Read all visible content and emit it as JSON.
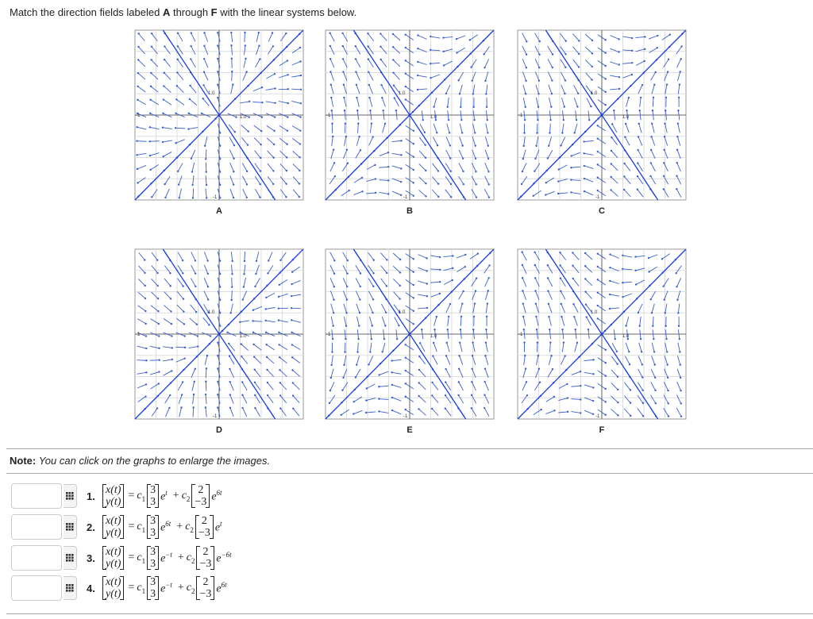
{
  "header": {
    "prefix": "Match the direction fields labeled ",
    "a": "A",
    "middle": " through ",
    "f": "F",
    "suffix": " with the linear systems below."
  },
  "graphs": [
    {
      "label": "A"
    },
    {
      "label": "B"
    },
    {
      "label": "C"
    },
    {
      "label": "D"
    },
    {
      "label": "E"
    },
    {
      "label": "F"
    }
  ],
  "axis_labels": {
    "x_pos": "1.0",
    "y_pos": "1.0",
    "x_neg": "-1",
    "y_neg": "-1"
  },
  "note": {
    "bold": "Note:",
    "text": "You can click on the graphs to enlarge the images."
  },
  "symbols": {
    "eq": "=",
    "plus": "+",
    "c": "c",
    "sub1": "1",
    "sub2": "2",
    "e": "e"
  },
  "equations": [
    {
      "number": "1.",
      "lhs": [
        "x(t)",
        "y(t)"
      ],
      "v1": [
        "3",
        "3"
      ],
      "exp1": "t",
      "v2": [
        "2",
        "−3"
      ],
      "exp2": "6t"
    },
    {
      "number": "2.",
      "lhs": [
        "x(t)",
        "y(t)"
      ],
      "v1": [
        "3",
        "3"
      ],
      "exp1": "6t",
      "v2": [
        "2",
        "−3"
      ],
      "exp2": "t"
    },
    {
      "number": "3.",
      "lhs": [
        "x(t)",
        "y(t)"
      ],
      "v1": [
        "3",
        "3"
      ],
      "exp1": "−t",
      "v2": [
        "2",
        "−3"
      ],
      "exp2": "−6t"
    },
    {
      "number": "4.",
      "lhs": [
        "x(t)",
        "y(t)"
      ],
      "v1": [
        "3",
        "3"
      ],
      "exp1": "−t",
      "v2": [
        "2",
        "−3"
      ],
      "exp2": "6t"
    }
  ]
}
